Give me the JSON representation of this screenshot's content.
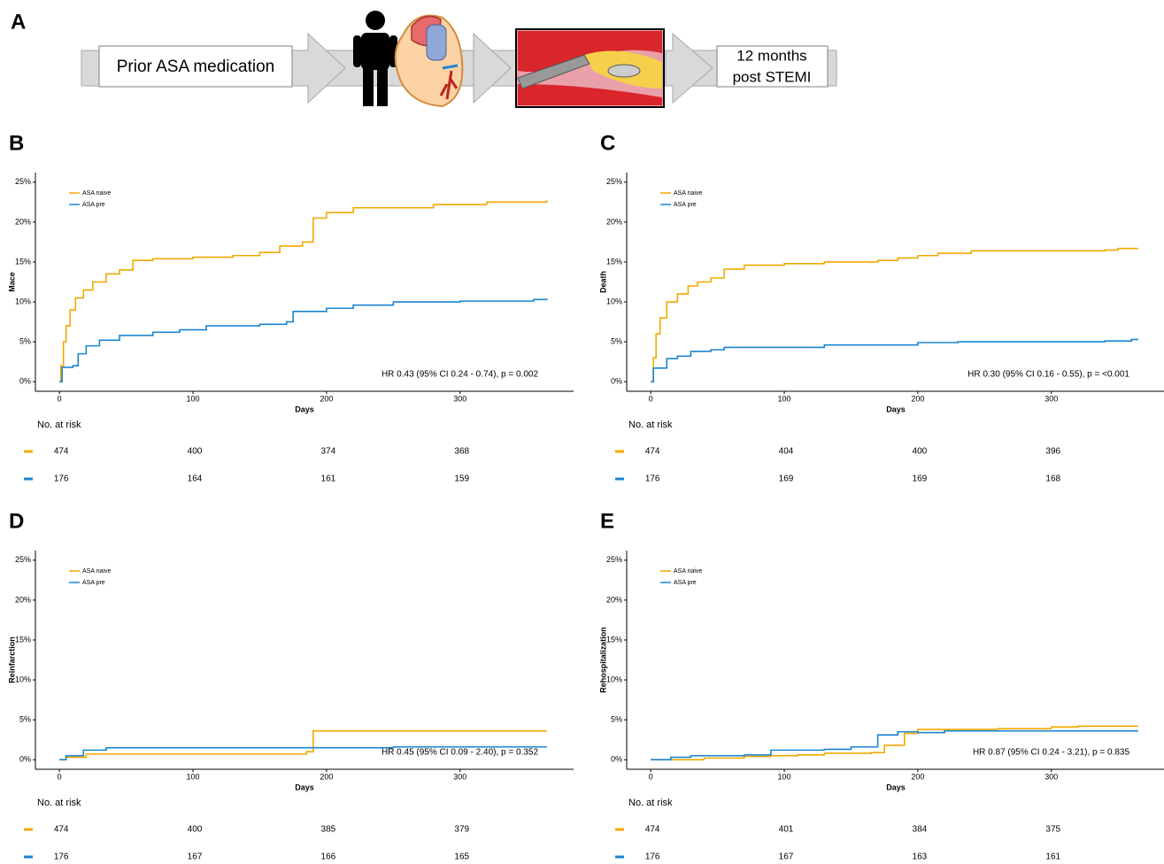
{
  "panel_a": {
    "label": "A",
    "start": "Prior ASA medication",
    "end_lines": [
      "12 months",
      "post STEMI"
    ]
  },
  "chart_data": [
    {
      "type": "line",
      "panel": "B",
      "y_label": "Mace",
      "x_label": "Days",
      "xlim": [
        -18,
        385
      ],
      "ylim": [
        -1.2,
        26.2
      ],
      "xticks": [
        0,
        100,
        200,
        300
      ],
      "yticks": [
        {
          "value": 0,
          "label": "0%"
        },
        {
          "value": 5,
          "label": "5%"
        },
        {
          "value": 10,
          "label": "10%"
        },
        {
          "value": 15,
          "label": "15%"
        },
        {
          "value": 20,
          "label": "20%"
        },
        {
          "value": 25,
          "label": "25%"
        }
      ],
      "series": [
        {
          "name": "ASA naive",
          "color": "#f2a900",
          "x": [
            0,
            1,
            3,
            5,
            8,
            12,
            18,
            25,
            35,
            45,
            55,
            70,
            100,
            130,
            150,
            165,
            182,
            190,
            200,
            220,
            280,
            320,
            365
          ],
          "values": [
            0,
            2,
            5,
            7,
            9,
            10.5,
            11.5,
            12.5,
            13.5,
            14,
            15.2,
            15.4,
            15.6,
            15.8,
            16.2,
            17,
            17.5,
            20.5,
            21.2,
            21.8,
            22.2,
            22.5,
            22.7
          ]
        },
        {
          "name": "ASA pre",
          "color": "#1b85d0",
          "x": [
            0,
            2,
            10,
            14,
            20,
            30,
            45,
            70,
            90,
            110,
            150,
            170,
            175,
            200,
            220,
            250,
            300,
            355,
            365
          ],
          "values": [
            0,
            1.8,
            2,
            3.5,
            4.5,
            5.2,
            5.8,
            6.2,
            6.5,
            7,
            7.2,
            7.5,
            8.8,
            9.2,
            9.6,
            10,
            10.1,
            10.3,
            10.4
          ]
        }
      ],
      "annotation": "HR 0.43 (95% CI 0.24 - 0.74), p = 0.002",
      "risk_table": {
        "title": "No. at risk",
        "rows": [
          [
            474,
            400,
            374,
            368
          ],
          [
            176,
            164,
            161,
            159
          ]
        ]
      }
    },
    {
      "type": "line",
      "panel": "C",
      "y_label": "Death",
      "x_label": "Days",
      "xlim": [
        -18,
        385
      ],
      "ylim": [
        -1.2,
        26.2
      ],
      "xticks": [
        0,
        100,
        200,
        300
      ],
      "yticks": [
        {
          "value": 0,
          "label": "0%"
        },
        {
          "value": 5,
          "label": "5%"
        },
        {
          "value": 10,
          "label": "10%"
        },
        {
          "value": 15,
          "label": "15%"
        },
        {
          "value": 20,
          "label": "20%"
        },
        {
          "value": 25,
          "label": "25%"
        }
      ],
      "series": [
        {
          "name": "ASA naive",
          "color": "#f2a900",
          "x": [
            0,
            2,
            4,
            7,
            12,
            20,
            28,
            35,
            45,
            55,
            70,
            100,
            130,
            170,
            185,
            200,
            215,
            240,
            340,
            350,
            365
          ],
          "values": [
            0,
            3,
            6,
            8,
            10,
            11,
            12,
            12.5,
            13,
            14.1,
            14.6,
            14.8,
            15,
            15.2,
            15.5,
            15.8,
            16.1,
            16.4,
            16.5,
            16.7,
            16.7
          ]
        },
        {
          "name": "ASA pre",
          "color": "#1b85d0",
          "x": [
            0,
            2,
            12,
            20,
            30,
            45,
            55,
            130,
            200,
            230,
            340,
            360,
            365
          ],
          "values": [
            0,
            1.7,
            2.9,
            3.2,
            3.8,
            4,
            4.3,
            4.6,
            4.9,
            5,
            5.1,
            5.3,
            5.3
          ]
        }
      ],
      "annotation": "HR 0.30 (95% CI 0.16 - 0.55), p = <0.001",
      "risk_table": {
        "title": "No. at risk",
        "rows": [
          [
            474,
            404,
            400,
            396
          ],
          [
            176,
            169,
            169,
            168
          ]
        ]
      }
    },
    {
      "type": "line",
      "panel": "D",
      "y_label": "Reinfarction",
      "x_label": "Days",
      "xlim": [
        -18,
        385
      ],
      "ylim": [
        -1.2,
        26.2
      ],
      "xticks": [
        0,
        100,
        200,
        300
      ],
      "yticks": [
        {
          "value": 0,
          "label": "0%"
        },
        {
          "value": 5,
          "label": "5%"
        },
        {
          "value": 10,
          "label": "10%"
        },
        {
          "value": 15,
          "label": "15%"
        },
        {
          "value": 20,
          "label": "20%"
        },
        {
          "value": 25,
          "label": "25%"
        }
      ],
      "series": [
        {
          "name": "ASA naive",
          "color": "#f2a900",
          "x": [
            0,
            5,
            20,
            180,
            185,
            190,
            365
          ],
          "values": [
            0,
            0.3,
            0.7,
            0.7,
            1,
            3.6,
            3.6
          ]
        },
        {
          "name": "ASA pre",
          "color": "#1b85d0",
          "x": [
            0,
            5,
            18,
            35,
            190,
            250,
            365
          ],
          "values": [
            0,
            0.5,
            1.2,
            1.5,
            1.5,
            1.6,
            1.6
          ]
        }
      ],
      "annotation": "HR 0.45 (95% CI 0.09 - 2.40), p = 0.352",
      "risk_table": {
        "title": "No. at risk",
        "rows": [
          [
            474,
            400,
            385,
            379
          ],
          [
            176,
            167,
            166,
            165
          ]
        ]
      }
    },
    {
      "type": "line",
      "panel": "E",
      "y_label": "Rehospitalization",
      "x_label": "Days",
      "xlim": [
        -18,
        385
      ],
      "ylim": [
        -1.2,
        26.2
      ],
      "xticks": [
        0,
        100,
        200,
        300
      ],
      "yticks": [
        {
          "value": 0,
          "label": "0%"
        },
        {
          "value": 5,
          "label": "5%"
        },
        {
          "value": 10,
          "label": "10%"
        },
        {
          "value": 15,
          "label": "15%"
        },
        {
          "value": 20,
          "label": "20%"
        },
        {
          "value": 25,
          "label": "25%"
        }
      ],
      "series": [
        {
          "name": "ASA naive",
          "color": "#f2a900",
          "x": [
            0,
            40,
            70,
            90,
            110,
            130,
            165,
            175,
            190,
            200,
            260,
            300,
            320,
            365
          ],
          "values": [
            0,
            0.2,
            0.4,
            0.5,
            0.6,
            0.8,
            0.9,
            1.8,
            3.3,
            3.8,
            3.9,
            4.1,
            4.2,
            4.2
          ]
        },
        {
          "name": "ASA pre",
          "color": "#1b85d0",
          "x": [
            0,
            15,
            30,
            70,
            90,
            130,
            150,
            170,
            185,
            200,
            220,
            365
          ],
          "values": [
            0,
            0.3,
            0.5,
            0.6,
            1.2,
            1.3,
            1.6,
            3.1,
            3.5,
            3.4,
            3.6,
            3.6
          ]
        }
      ],
      "annotation": "HR 0.87 (95% CI 0.24 - 3.21), p = 0.835",
      "risk_table": {
        "title": "No. at risk",
        "rows": [
          [
            474,
            401,
            384,
            375
          ],
          [
            176,
            167,
            163,
            161
          ]
        ]
      }
    }
  ]
}
